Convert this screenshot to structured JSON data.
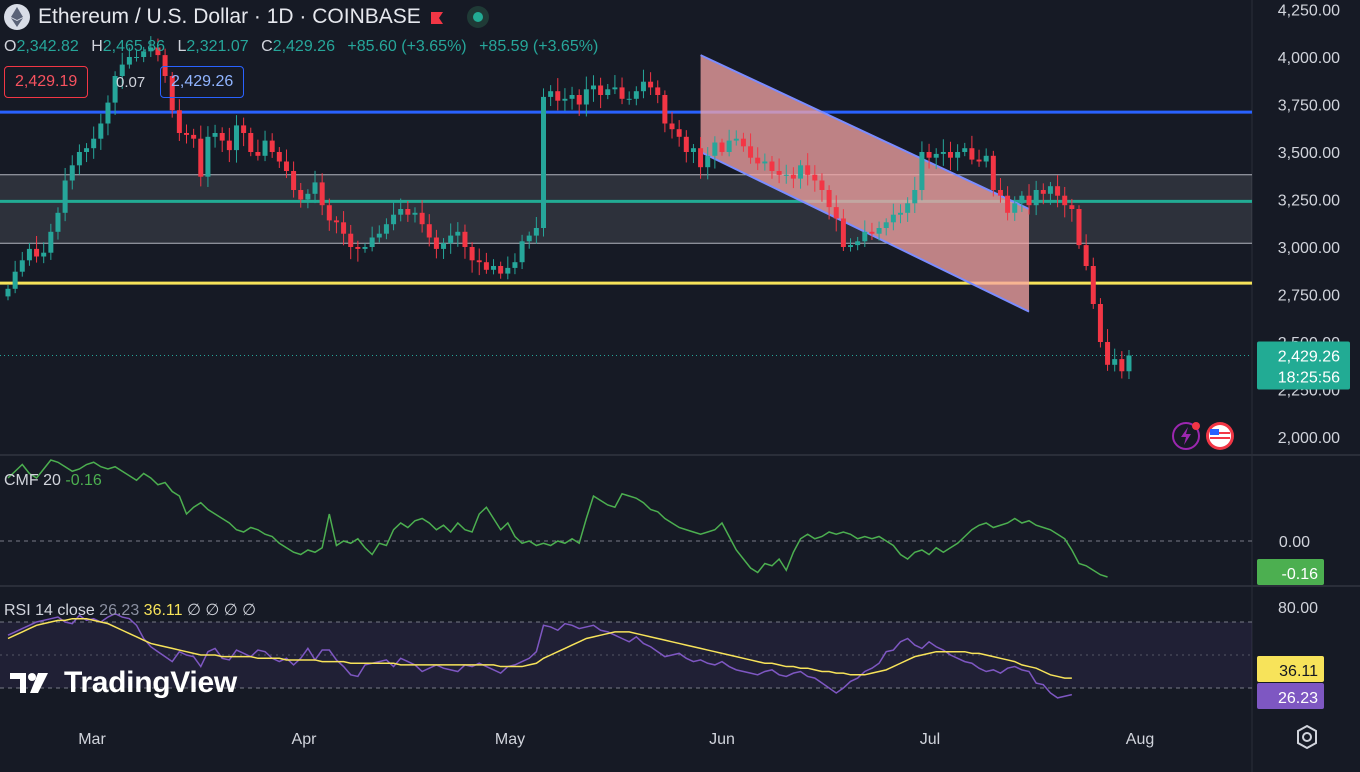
{
  "header": {
    "title": "Ethereum / U.S. Dollar · 1D · COINBASE",
    "ohlc": {
      "o_label": "O",
      "o": "2,342.82",
      "h_label": "H",
      "h": "2,465.86",
      "l_label": "L",
      "l": "2,321.07",
      "c_label": "C",
      "c": "2,429.26",
      "change1": "+85.60 (+3.65%)",
      "change2": "+85.59 (+3.65%)"
    },
    "sell_price": "2,429.19",
    "spread": "0.07",
    "buy_price": "2,429.26"
  },
  "colors": {
    "bg": "#161a25",
    "up": "#26a69a",
    "down": "#f23645",
    "channel": "#f7a6a6",
    "blue_line": "#2962ff",
    "yellow_line": "#f7e35a",
    "cmf": "#4caf50",
    "rsi": "#7e57c2",
    "rsi_ma": "#f7e35a"
  },
  "chart_data": [
    {
      "type": "candlestick",
      "title": "Ethereum / U.S. Dollar · 1D · COINBASE",
      "x_ticks": [
        "Mar",
        "Apr",
        "May",
        "Jun",
        "Jul",
        "Aug"
      ],
      "y_ticks": [
        "2,000.00",
        "2,250.00",
        "2,500.00",
        "2,750.00",
        "3,000.00",
        "3,250.00",
        "3,500.00",
        "3,750.00",
        "4,000.00",
        "4,250.00"
      ],
      "ylim": [
        1950,
        4300
      ],
      "last_price": "2,429.26",
      "countdown": "18:25:56",
      "horizontal_lines": [
        {
          "value": 3710,
          "color": "blue"
        },
        {
          "value": 3380,
          "color": "white"
        },
        {
          "value": 3240,
          "color": "teal"
        },
        {
          "value": 3020,
          "color": "white"
        },
        {
          "value": 2810,
          "color": "yellow"
        }
      ],
      "zone": {
        "from": 3020,
        "to": 3380
      },
      "channel": {
        "start": "May 27",
        "end": "Jul 15",
        "upper": [
          4010,
          3200
        ],
        "lower": [
          3500,
          2660
        ]
      },
      "closes": [
        2780,
        2870,
        2930,
        2990,
        2950,
        2970,
        3080,
        3180,
        3350,
        3430,
        3500,
        3520,
        3570,
        3650,
        3760,
        3900,
        3960,
        4000,
        4000,
        4030,
        4050,
        4010,
        3900,
        3720,
        3600,
        3590,
        3570,
        3370,
        3580,
        3600,
        3560,
        3510,
        3640,
        3600,
        3500,
        3480,
        3560,
        3500,
        3450,
        3400,
        3300,
        3250,
        3280,
        3340,
        3220,
        3140,
        3130,
        3070,
        3000,
        2990,
        3000,
        3050,
        3070,
        3120,
        3170,
        3200,
        3170,
        3180,
        3120,
        3050,
        2990,
        3020,
        3060,
        3080,
        3000,
        2930,
        2920,
        2880,
        2900,
        2860,
        2890,
        2920,
        3030,
        3060,
        3100,
        3790,
        3820,
        3770,
        3780,
        3800,
        3750,
        3830,
        3850,
        3800,
        3830,
        3840,
        3780,
        3780,
        3820,
        3870,
        3840,
        3800,
        3650,
        3620,
        3580,
        3500,
        3520,
        3420,
        3480,
        3550,
        3500,
        3560,
        3570,
        3530,
        3470,
        3440,
        3450,
        3400,
        3380,
        3380,
        3360,
        3430,
        3380,
        3350,
        3300,
        3210,
        3150,
        3000,
        3010,
        3030,
        3080,
        3070,
        3100,
        3130,
        3170,
        3180,
        3230,
        3300,
        3500,
        3470,
        3490,
        3500,
        3470,
        3500,
        3520,
        3460,
        3450,
        3480,
        3300,
        3270,
        3180,
        3230,
        3270,
        3220,
        3300,
        3280,
        3320,
        3270,
        3220,
        3200,
        3010,
        2900,
        2700,
        2500,
        2380,
        2410,
        2346,
        2429
      ]
    },
    {
      "type": "line",
      "title": "CMF 20",
      "value": "-0.16",
      "zero_label": "0.00",
      "values": [
        0.28,
        0.31,
        0.34,
        0.3,
        0.28,
        0.32,
        0.36,
        0.35,
        0.33,
        0.31,
        0.32,
        0.34,
        0.35,
        0.33,
        0.32,
        0.33,
        0.31,
        0.29,
        0.27,
        0.3,
        0.28,
        0.25,
        0.26,
        0.22,
        0.2,
        0.12,
        0.15,
        0.17,
        0.14,
        0.12,
        0.1,
        0.08,
        0.05,
        0.04,
        0.06,
        0.05,
        0.03,
        0.02,
        -0.01,
        -0.03,
        -0.05,
        -0.06,
        -0.04,
        -0.05,
        -0.03,
        0.12,
        -0.02,
        0.0,
        -0.01,
        0.01,
        -0.03,
        -0.06,
        -0.01,
        -0.02,
        0.05,
        0.08,
        0.06,
        0.09,
        0.1,
        0.08,
        0.05,
        0.07,
        0.04,
        0.08,
        0.05,
        0.04,
        0.12,
        0.15,
        0.1,
        0.05,
        0.08,
        0.02,
        -0.01,
        0.0,
        -0.02,
        -0.01,
        -0.02,
        0.0,
        -0.01,
        0.01,
        -0.01,
        0.1,
        0.2,
        0.18,
        0.16,
        0.15,
        0.21,
        0.2,
        0.19,
        0.17,
        0.14,
        0.13,
        0.1,
        0.08,
        0.06,
        0.05,
        0.04,
        0.03,
        0.04,
        0.05,
        0.08,
        0.02,
        -0.04,
        -0.08,
        -0.12,
        -0.14,
        -0.1,
        -0.11,
        -0.08,
        -0.13,
        -0.05,
        0.01,
        0.03,
        0.01,
        0.02,
        0.04,
        0.03,
        0.04,
        0.03,
        0.01,
        0.02,
        0.01,
        0.02,
        0.0,
        -0.02,
        -0.06,
        -0.08,
        -0.05,
        -0.04,
        -0.06,
        -0.03,
        -0.05,
        -0.03,
        -0.01,
        0.02,
        0.05,
        0.07,
        0.08,
        0.06,
        0.07,
        0.08,
        0.1,
        0.08,
        0.09,
        0.07,
        0.06,
        0.05,
        0.03,
        0.01,
        -0.04,
        -0.1,
        -0.11,
        -0.13,
        -0.15,
        -0.16
      ]
    },
    {
      "type": "line",
      "title": "RSI 14 close",
      "rsi_value": "26.23",
      "ma_value": "36.11",
      "extra": "∅ ∅ ∅ ∅",
      "y_ticks": [
        "80.00"
      ],
      "bands": [
        70,
        30
      ],
      "rsi": [
        62,
        64,
        66,
        68,
        70,
        71,
        72,
        73,
        70,
        69,
        74,
        71,
        72,
        70,
        73,
        75,
        73,
        72,
        68,
        60,
        55,
        52,
        49,
        46,
        52,
        50,
        49,
        43,
        52,
        54,
        48,
        47,
        53,
        51,
        49,
        53,
        52,
        48,
        46,
        48,
        44,
        48,
        54,
        47,
        53,
        53,
        47,
        43,
        38,
        37,
        44,
        45,
        46,
        47,
        43,
        48,
        46,
        44,
        40,
        42,
        44,
        42,
        41,
        40,
        44,
        43,
        45,
        43,
        41,
        39,
        43,
        44,
        46,
        48,
        52,
        68,
        67,
        65,
        69,
        68,
        66,
        67,
        68,
        65,
        64,
        62,
        60,
        58,
        61,
        57,
        55,
        52,
        49,
        50,
        51,
        48,
        46,
        47,
        45,
        44,
        46,
        43,
        41,
        40,
        39,
        38,
        40,
        41,
        38,
        37,
        39,
        40,
        37,
        36,
        33,
        30,
        27,
        30,
        34,
        36,
        40,
        42,
        45,
        52,
        53,
        58,
        60,
        56,
        54,
        58,
        55,
        53,
        50,
        48,
        46,
        45,
        42,
        40,
        41,
        39,
        42,
        43,
        41,
        40,
        33,
        32,
        27,
        24,
        25,
        26
      ],
      "ma": [
        60,
        62,
        64,
        66,
        68,
        69,
        70,
        71,
        71,
        72,
        72,
        72,
        71,
        70,
        69,
        67,
        65,
        63,
        61,
        59,
        57,
        56,
        55,
        54,
        53,
        52,
        51,
        50,
        50,
        50,
        49,
        49,
        49,
        49,
        49,
        48,
        48,
        48,
        48,
        47,
        47,
        47,
        47,
        47,
        46,
        46,
        46,
        46,
        45,
        45,
        45,
        45,
        45,
        45,
        45,
        44,
        44,
        44,
        44,
        44,
        44,
        44,
        44,
        44,
        44,
        44,
        44,
        44,
        44,
        43,
        43,
        43,
        43,
        44,
        45,
        48,
        50,
        52,
        54,
        56,
        58,
        60,
        61,
        62,
        63,
        64,
        64,
        64,
        63,
        62,
        61,
        60,
        59,
        58,
        57,
        56,
        55,
        54,
        53,
        52,
        51,
        50,
        49,
        48,
        47,
        46,
        45,
        45,
        44,
        43,
        43,
        42,
        42,
        41,
        40,
        40,
        39,
        39,
        38,
        38,
        38,
        39,
        40,
        41,
        43,
        45,
        47,
        49,
        50,
        51,
        52,
        52,
        52,
        52,
        52,
        51,
        51,
        50,
        49,
        48,
        47,
        46,
        44,
        43,
        42,
        40,
        38,
        37,
        36,
        36
      ]
    }
  ]
}
